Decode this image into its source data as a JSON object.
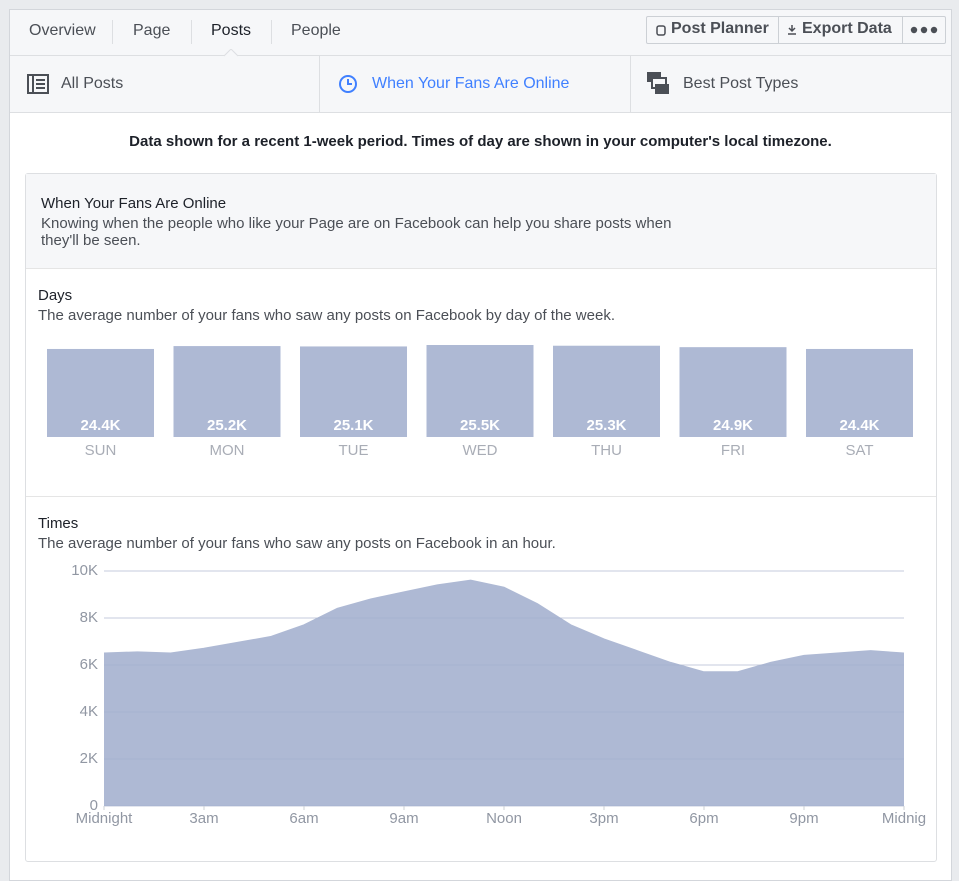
{
  "nav": {
    "tabs": [
      "Overview",
      "Page",
      "Posts",
      "People"
    ]
  },
  "actions": [
    "Post Planner",
    "Export Data"
  ],
  "subtabs": [
    "All Posts",
    "When Your Fans Are Online",
    "Best Post Types"
  ],
  "notice": "Data shown for a recent 1-week period. Times of day are shown in your computer's local timezone.",
  "card": {
    "title": "When Your Fans Are Online",
    "description": "Knowing when the people who like your Page are on Facebook can help you share posts when they'll be seen."
  },
  "chart_data": [
    {
      "type": "bar",
      "title": "Days",
      "subtitle": "The average number of your fans who saw any posts on Facebook by day of the week.",
      "categories": [
        "SUN",
        "MON",
        "TUE",
        "WED",
        "THU",
        "FRI",
        "SAT"
      ],
      "values": [
        24.4,
        25.2,
        25.1,
        25.5,
        25.3,
        24.9,
        24.4
      ],
      "value_labels": [
        "24.4K",
        "25.2K",
        "25.1K",
        "25.5K",
        "25.3K",
        "24.9K",
        "24.4K"
      ],
      "color": "#aeb9d4"
    },
    {
      "type": "area",
      "title": "Times",
      "subtitle": "The average number of your fans who saw any posts on Facebook in an hour.",
      "x": [
        0,
        1,
        2,
        3,
        4,
        5,
        6,
        7,
        8,
        9,
        10,
        11,
        12,
        13,
        14,
        15,
        16,
        17,
        18,
        19,
        20,
        21,
        22,
        23,
        24
      ],
      "values": [
        6500,
        6550,
        6500,
        6700,
        6950,
        7200,
        7700,
        8400,
        8800,
        9100,
        9400,
        9600,
        9300,
        8600,
        7700,
        7100,
        6600,
        6100,
        5700,
        5700,
        6100,
        6400,
        6500,
        6600,
        6500
      ],
      "xlim": [
        0,
        24
      ],
      "ylim": [
        0,
        10000
      ],
      "xticks": [
        {
          "value": 0,
          "label": "Midnight"
        },
        {
          "value": 3,
          "label": "3am"
        },
        {
          "value": 6,
          "label": "6am"
        },
        {
          "value": 9,
          "label": "9am"
        },
        {
          "value": 12,
          "label": "Noon"
        },
        {
          "value": 15,
          "label": "3pm"
        },
        {
          "value": 18,
          "label": "6pm"
        },
        {
          "value": 21,
          "label": "9pm"
        },
        {
          "value": 24,
          "label": "Midnig"
        }
      ],
      "yticks": [
        0,
        {
          "value": 2000,
          "label": "2K"
        },
        {
          "value": 4000,
          "label": "4K"
        },
        {
          "value": 6000,
          "label": "6K"
        },
        {
          "value": 8000,
          "label": "8K"
        },
        {
          "value": 10000,
          "label": "10K"
        }
      ],
      "grid": true,
      "color": "#aeb9d4"
    }
  ]
}
